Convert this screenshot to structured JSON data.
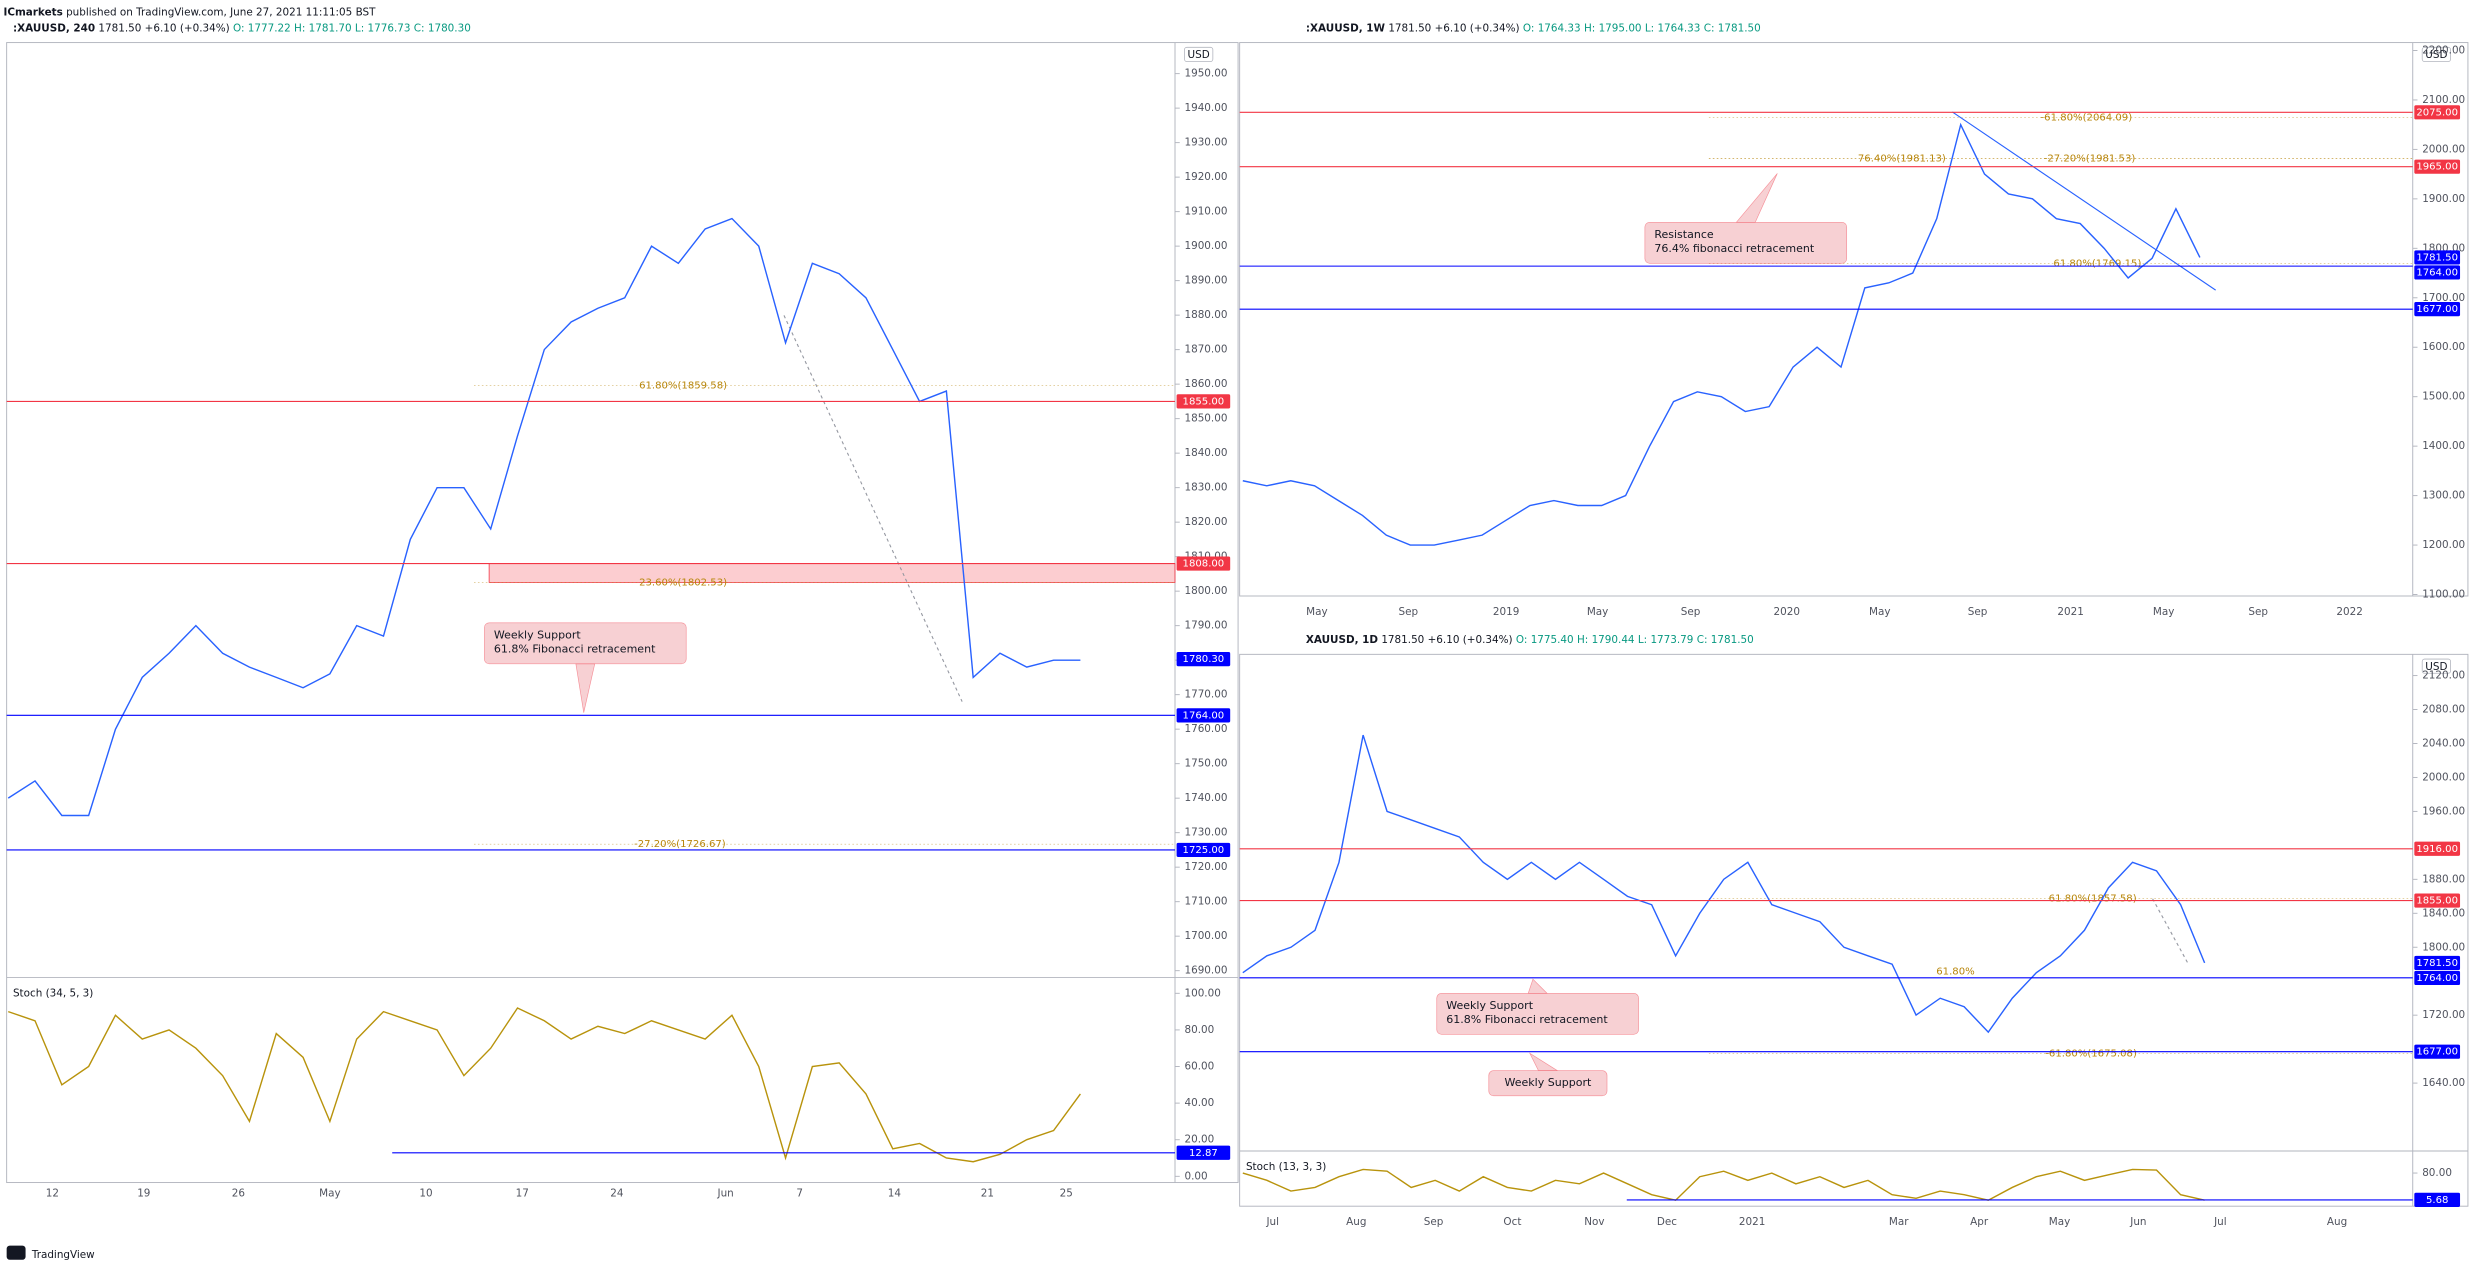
{
  "header": {
    "author": "ICmarkets",
    "text": "published on TradingView.com, June 27, 2021 11:11:05 BST",
    "brand": "TradingView"
  },
  "chart_data": [
    {
      "type": "line",
      "symbol": ":XAUUSD, 240",
      "quote": "1781.50 +6.10 (+0.34%)",
      "ohlc": "O: 1777.22 H: 1781.70 L: 1776.73 C: 1780.30",
      "currency": "USD",
      "color": "#2962ff",
      "ylim": [
        1688,
        1959
      ],
      "yticks": [
        {
          "value": 1690,
          "label": "1690.00"
        },
        {
          "value": 1700,
          "label": "1700.00"
        },
        {
          "value": 1710,
          "label": "1710.00"
        },
        {
          "value": 1720,
          "label": "1720.00"
        },
        {
          "value": 1730,
          "label": "1730.00"
        },
        {
          "value": 1740,
          "label": "1740.00"
        },
        {
          "value": 1750,
          "label": "1750.00"
        },
        {
          "value": 1760,
          "label": "1760.00"
        },
        {
          "value": 1770,
          "label": "1770.00"
        },
        {
          "value": 1780,
          "label": "1780.00"
        },
        {
          "value": 1790,
          "label": "1790.00"
        },
        {
          "value": 1800,
          "label": "1800.00"
        },
        {
          "value": 1810,
          "label": "1810.00"
        },
        {
          "value": 1820,
          "label": "1820.00"
        },
        {
          "value": 1830,
          "label": "1830.00"
        },
        {
          "value": 1840,
          "label": "1840.00"
        },
        {
          "value": 1850,
          "label": "1850.00"
        },
        {
          "value": 1860,
          "label": "1860.00"
        },
        {
          "value": 1870,
          "label": "1870.00"
        },
        {
          "value": 1880,
          "label": "1880.00"
        },
        {
          "value": 1890,
          "label": "1890.00"
        },
        {
          "value": 1900,
          "label": "1900.00"
        },
        {
          "value": 1910,
          "label": "1910.00"
        },
        {
          "value": 1920,
          "label": "1920.00"
        },
        {
          "value": 1930,
          "label": "1930.00"
        },
        {
          "value": 1940,
          "label": "1940.00"
        },
        {
          "value": 1950,
          "label": "1950.00"
        }
      ],
      "x_labels": [
        "12",
        "19",
        "26",
        "May",
        "10",
        "17",
        "24",
        "Jun",
        "7",
        "14",
        "21",
        "25"
      ],
      "values": [
        1740,
        1745,
        1735,
        1735,
        1760,
        1775,
        1782,
        1790,
        1782,
        1778,
        1775,
        1772,
        1776,
        1790,
        1787,
        1815,
        1830,
        1830,
        1818,
        1845,
        1870,
        1878,
        1882,
        1885,
        1900,
        1895,
        1905,
        1908,
        1900,
        1872,
        1895,
        1892,
        1885,
        1870,
        1855,
        1858,
        1775,
        1782,
        1778,
        1780,
        1780
      ],
      "levels": [
        {
          "value": 1855,
          "label": "1855.00",
          "color": "#f23645",
          "line": true
        },
        {
          "value": 1808,
          "label": "1808.00",
          "color": "#f23645",
          "line": true
        },
        {
          "value": 1780.3,
          "label": "1780.30",
          "color": "#0000ff",
          "line": false
        },
        {
          "value": 1764,
          "label": "1764.00",
          "color": "#0000ff",
          "line": true
        },
        {
          "value": 1725,
          "label": "1725.00",
          "color": "#0000ff",
          "line": true
        }
      ],
      "fibs": [
        {
          "label": "61.80%(1859.58)",
          "value": 1859.58
        },
        {
          "label": "23.60%(1802.53)",
          "value": 1802.53
        },
        {
          "label": "-27.20%(1726.67)",
          "value": 1726.67
        }
      ],
      "annotations": [
        [
          "Weekly Support",
          "61.8% Fibonacci retracement"
        ]
      ],
      "stoch": {
        "title": "Stoch (34, 5, 3)",
        "color": "#b8930c",
        "ylim": [
          -3.4,
          108.6
        ],
        "yticks": [
          {
            "value": 0,
            "label": "0.00"
          },
          {
            "value": 20,
            "label": "20.00"
          },
          {
            "value": 40,
            "label": "40.00"
          },
          {
            "value": 60,
            "label": "60.00"
          },
          {
            "value": 80,
            "label": "80.00"
          },
          {
            "value": 100,
            "label": "100.00"
          }
        ],
        "values": [
          90,
          85,
          50,
          60,
          88,
          75,
          80,
          70,
          55,
          30,
          78,
          65,
          30,
          75,
          90,
          85,
          80,
          55,
          70,
          92,
          85,
          75,
          82,
          78,
          85,
          80,
          75,
          88,
          60,
          10,
          60,
          62,
          45,
          15,
          18,
          10,
          8,
          12,
          20,
          25,
          45
        ],
        "level": {
          "value": 12.87,
          "label": "12.87"
        }
      }
    },
    {
      "type": "line",
      "symbol": ":XAUUSD, 1W",
      "quote": "1781.50 +6.10 (+0.34%)",
      "ohlc": "O: 1764.33 H: 1795.00 L: 1764.33 C: 1781.50",
      "currency": "USD",
      "color": "#2962ff",
      "ylim": [
        1097,
        2216
      ],
      "yticks": [
        {
          "value": 1100,
          "label": "1100.00"
        },
        {
          "value": 1200,
          "label": "1200.00"
        },
        {
          "value": 1300,
          "label": "1300.00"
        },
        {
          "value": 1400,
          "label": "1400.00"
        },
        {
          "value": 1500,
          "label": "1500.00"
        },
        {
          "value": 1600,
          "label": "1600.00"
        },
        {
          "value": 1700,
          "label": "1700.00"
        },
        {
          "value": 1800,
          "label": "1800.00"
        },
        {
          "value": 1900,
          "label": "1900.00"
        },
        {
          "value": 2000,
          "label": "2000.00"
        },
        {
          "value": 2100,
          "label": "2100.00"
        },
        {
          "value": 2200,
          "label": "2200.00"
        }
      ],
      "x_labels": [
        "May",
        "Sep",
        "2019",
        "May",
        "Sep",
        "2020",
        "May",
        "Sep",
        "2021",
        "May",
        "Sep",
        "2022"
      ],
      "values": [
        1330,
        1320,
        1330,
        1320,
        1290,
        1260,
        1220,
        1200,
        1200,
        1210,
        1220,
        1250,
        1280,
        1290,
        1280,
        1280,
        1300,
        1400,
        1490,
        1510,
        1500,
        1470,
        1480,
        1560,
        1600,
        1560,
        1720,
        1730,
        1750,
        1860,
        2050,
        1950,
        1910,
        1900,
        1860,
        1850,
        1800,
        1740,
        1780,
        1880,
        1781.5
      ],
      "levels": [
        {
          "value": 2075,
          "label": "2075.00",
          "color": "#f23645",
          "line": true
        },
        {
          "value": 1965,
          "label": "1965.00",
          "color": "#f23645",
          "line": true
        },
        {
          "value": 1781.5,
          "label": "1781.50",
          "color": "#0000ff",
          "line": false
        },
        {
          "value": 1764,
          "label": "1764.00",
          "color": "#0000ff",
          "line": true
        },
        {
          "value": 1677,
          "label": "1677.00",
          "color": "#0000ff",
          "line": true
        }
      ],
      "fibs": [
        {
          "label": "-61.80%(2064.09)",
          "value": 2064.09
        },
        {
          "label": "76.40%(1981.13)",
          "value": 1981.13
        },
        {
          "label": "-27.20%(1981.53)",
          "value": 1981.53
        },
        {
          "label": "61.80%(1769.15)",
          "value": 1769.15
        }
      ],
      "annotations": [
        [
          "Resistance",
          "76.4% fibonacci retracement"
        ]
      ]
    },
    {
      "type": "line",
      "symbol": "XAUUSD, 1D",
      "quote": "1781.50 +6.10 (+0.34%)",
      "ohlc": "O: 1775.40 H: 1790.44 L: 1773.79 C: 1781.50",
      "currency": "USD",
      "color": "#2962ff",
      "ylim": [
        1560,
        2145
      ],
      "yticks": [
        {
          "value": 1640,
          "label": "1640.00"
        },
        {
          "value": 1720,
          "label": "1720.00"
        },
        {
          "value": 1800,
          "label": "1800.00"
        },
        {
          "value": 1840,
          "label": "1840.00"
        },
        {
          "value": 1880,
          "label": "1880.00"
        },
        {
          "value": 1960,
          "label": "1960.00"
        },
        {
          "value": 2000,
          "label": "2000.00"
        },
        {
          "value": 2040,
          "label": "2040.00"
        },
        {
          "value": 2080,
          "label": "2080.00"
        },
        {
          "value": 2120,
          "label": "2120.00"
        }
      ],
      "x_labels": [
        "Jul",
        "Aug",
        "Sep",
        "Oct",
        "Nov",
        "Dec",
        "2021",
        "Mar",
        "Apr",
        "May",
        "Jun",
        "Jul",
        "Aug"
      ],
      "values": [
        1770,
        1790,
        1800,
        1820,
        1900,
        2050,
        1960,
        1950,
        1940,
        1930,
        1900,
        1880,
        1900,
        1880,
        1900,
        1880,
        1860,
        1850,
        1790,
        1840,
        1880,
        1900,
        1850,
        1840,
        1830,
        1800,
        1790,
        1780,
        1720,
        1740,
        1730,
        1700,
        1740,
        1770,
        1790,
        1820,
        1870,
        1900,
        1890,
        1850,
        1781.5
      ],
      "levels": [
        {
          "value": 1916,
          "label": "1916.00",
          "color": "#f23645",
          "line": true
        },
        {
          "value": 1855,
          "label": "1855.00",
          "color": "#f23645",
          "line": true
        },
        {
          "value": 1781.5,
          "label": "1781.50",
          "color": "#0000ff",
          "line": false
        },
        {
          "value": 1764,
          "label": "1764.00",
          "color": "#0000ff",
          "line": true
        },
        {
          "value": 1677,
          "label": "1677.00",
          "color": "#0000ff",
          "line": true
        }
      ],
      "fibs": [
        {
          "label": "61.80%(1857.58)",
          "value": 1857.58
        },
        {
          "label": "61.80%"
        },
        {
          "label": "-61.80%(1675.08)",
          "value": 1675.08
        }
      ],
      "annotations": [
        [
          "Weekly Support",
          "61.8% Fibonacci retracement"
        ],
        [
          "Weekly Support"
        ]
      ],
      "stoch": {
        "title": "Stoch (13, 3, 3)",
        "color": "#b8930c",
        "ylim": [
          -11.8,
          141
        ],
        "yticks": [
          {
            "value": 80,
            "label": "80.00"
          }
        ],
        "values": [
          80,
          60,
          30,
          40,
          70,
          90,
          85,
          40,
          60,
          30,
          70,
          40,
          30,
          60,
          50,
          80,
          50,
          20,
          5,
          70,
          85,
          60,
          80,
          50,
          70,
          40,
          60,
          20,
          10,
          30,
          20,
          5,
          40,
          70,
          85,
          60,
          75,
          90,
          88,
          20,
          5
        ],
        "level": {
          "value": 5.68,
          "label": "5.68"
        }
      }
    }
  ]
}
